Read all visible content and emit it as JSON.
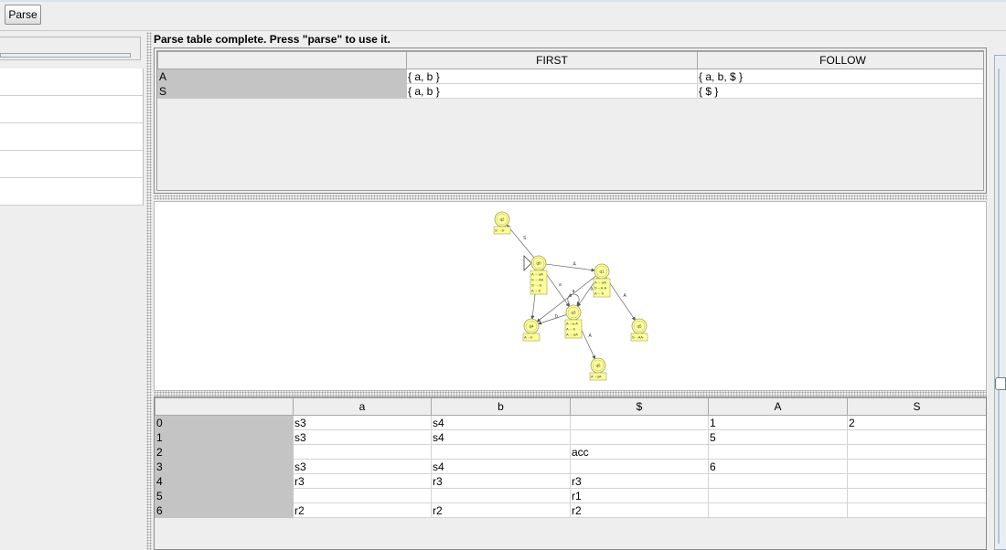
{
  "toolbar": {
    "parse_label": "Parse"
  },
  "status": {
    "message": "Parse table complete.  Press \"parse\" to use it."
  },
  "first_follow": {
    "headers": [
      "",
      "FIRST",
      "FOLLOW"
    ],
    "rows": [
      {
        "symbol": "A",
        "first": "{ a, b }",
        "follow": "{ a, b, $ }"
      },
      {
        "symbol": "S",
        "first": "{ a, b }",
        "follow": "{ $ }"
      }
    ]
  },
  "graph": {
    "states": [
      {
        "id": "q2",
        "label": "q2",
        "items": [
          "S'→S·"
        ]
      },
      {
        "id": "q0",
        "label": "q0",
        "items": [
          "A→·aA",
          "S→·AA",
          "S'→·S",
          "A→·b"
        ],
        "initial": true
      },
      {
        "id": "q1",
        "label": "q1",
        "items": [
          "A→·aA",
          "S→A·A",
          "A→·b"
        ]
      },
      {
        "id": "q3",
        "label": "q3",
        "items": [
          "A→a·A",
          "A→·b",
          "A→·aA"
        ]
      },
      {
        "id": "q4",
        "label": "q4",
        "items": [
          "A→b·"
        ]
      },
      {
        "id": "q5",
        "label": "q5",
        "items": [
          "S→AA·"
        ]
      },
      {
        "id": "q6",
        "label": "q6",
        "items": [
          "A→aA·"
        ]
      }
    ],
    "transitions": [
      {
        "from": "q0",
        "to": "q2",
        "label": "S"
      },
      {
        "from": "q0",
        "to": "q1",
        "label": "A"
      },
      {
        "from": "q0",
        "to": "q3",
        "label": "a"
      },
      {
        "from": "q0",
        "to": "q4",
        "label": "b"
      },
      {
        "from": "q1",
        "to": "q3",
        "label": "a"
      },
      {
        "from": "q1",
        "to": "q4",
        "label": "b"
      },
      {
        "from": "q1",
        "to": "q5",
        "label": "A"
      },
      {
        "from": "q3",
        "to": "q3",
        "label": "a"
      },
      {
        "from": "q3",
        "to": "q4",
        "label": "b"
      },
      {
        "from": "q3",
        "to": "q6",
        "label": "A"
      }
    ]
  },
  "parse_table": {
    "headers": [
      "",
      "a",
      "b",
      "$",
      "A",
      "S"
    ],
    "rows": [
      [
        "0",
        "s3",
        "s4",
        "",
        "1",
        "2"
      ],
      [
        "1",
        "s3",
        "s4",
        "",
        "5",
        ""
      ],
      [
        "2",
        "",
        "",
        "acc",
        "",
        ""
      ],
      [
        "3",
        "s3",
        "s4",
        "",
        "6",
        ""
      ],
      [
        "4",
        "r3",
        "r3",
        "r3",
        "",
        ""
      ],
      [
        "5",
        "",
        "",
        "r1",
        "",
        ""
      ],
      [
        "6",
        "r2",
        "r2",
        "r2",
        "",
        ""
      ]
    ]
  },
  "right_panel": {
    "dots": "···"
  },
  "colors": {
    "state_fill": "#ffff99",
    "state_stroke": "#a0a060",
    "row_header": "#c4c4c4"
  }
}
